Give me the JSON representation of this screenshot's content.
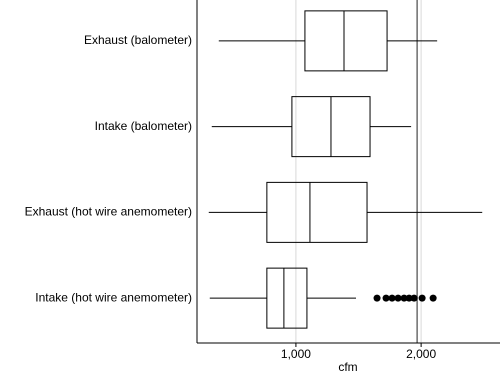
{
  "chart_data": {
    "type": "box",
    "orientation": "horizontal",
    "x_label": "cfm",
    "categories": [
      "Exhaust (balometer)",
      "Intake (balometer)",
      "Exhaust (hot wire anemometer)",
      "Intake (hot wire anemometer)"
    ],
    "boxes": [
      {
        "min": 384,
        "q1": 1072,
        "median": 1384,
        "q3": 1728,
        "max": 2128,
        "outliers": []
      },
      {
        "min": 328,
        "q1": 968,
        "median": 1280,
        "q3": 1592,
        "max": 1920,
        "outliers": []
      },
      {
        "min": 304,
        "q1": 768,
        "median": 1112,
        "q3": 1568,
        "max": 2488,
        "outliers": []
      },
      {
        "min": 312,
        "q1": 768,
        "median": 904,
        "q3": 1088,
        "max": 1480,
        "outliers": [
          1648,
          1720,
          1768,
          1816,
          1864,
          1904,
          1944,
          2008,
          2096
        ]
      }
    ],
    "xlim": [
      210,
      2630
    ],
    "xticks": [
      {
        "value": 1000,
        "label": "1,000"
      },
      {
        "value": 2000,
        "label": "2,000"
      }
    ],
    "reference_line": 1968,
    "grid": true,
    "color": "#000000"
  }
}
